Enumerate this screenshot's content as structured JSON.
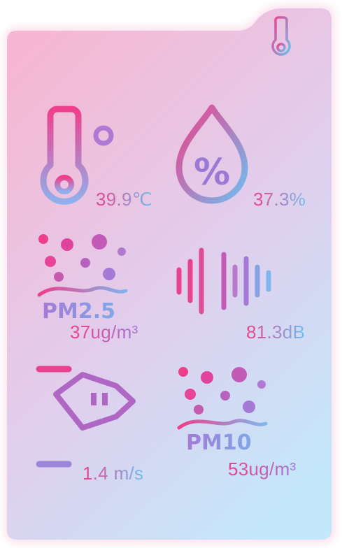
{
  "panel": {
    "header_icon": "thermometer-list-icon"
  },
  "sensors": {
    "temperature": {
      "icon": "thermometer-icon",
      "value": "39.9℃"
    },
    "humidity": {
      "icon": "humidity-drop-percent-icon",
      "value": "37.3%"
    },
    "pm25": {
      "icon": "particles-icon",
      "label": "PM2.5",
      "value": "37ug/m³"
    },
    "noise": {
      "icon": "sound-wave-icon",
      "value": "81.3dB"
    },
    "wind": {
      "icon": "windsock-icon",
      "value": "1.4 m/s"
    },
    "pm10": {
      "icon": "particles-icon",
      "label": "PM10",
      "value": "53ug/m³"
    }
  },
  "colors": {
    "pink": "#ee3f8a",
    "purple": "#a47ad6",
    "blue": "#6fbff0",
    "bg_top": "#f6b9d4",
    "bg_bottom": "#c6e9fb"
  }
}
